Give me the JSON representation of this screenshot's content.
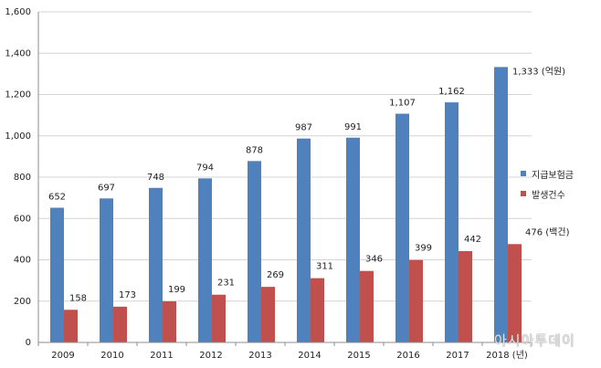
{
  "chart_data": {
    "type": "bar",
    "categories": [
      "2009",
      "2010",
      "2011",
      "2012",
      "2013",
      "2014",
      "2015",
      "2016",
      "2017",
      "2018"
    ],
    "series": [
      {
        "name": "지급보험금",
        "color": "#4f81bd",
        "values": [
          652,
          697,
          748,
          794,
          878,
          987,
          991,
          1107,
          1162,
          1333
        ]
      },
      {
        "name": "발생건수",
        "color": "#c0504d",
        "values": [
          158,
          173,
          199,
          231,
          269,
          311,
          346,
          399,
          442,
          476
        ]
      }
    ],
    "value_labels": {
      "지급보험금": [
        "652",
        "697",
        "748",
        "794",
        "878",
        "987",
        "991",
        "1,107",
        "1,162",
        "1,333"
      ],
      "발생건수": [
        "158",
        "173",
        "199",
        "231",
        "269",
        "311",
        "346",
        "399",
        "442",
        "476"
      ]
    },
    "ylim": [
      0,
      1600
    ],
    "yticks": [
      "0",
      "200",
      "400",
      "600",
      "800",
      "1,000",
      "1,200",
      "1,400",
      "1,600"
    ],
    "unit_annotations": {
      "지급보험금": "(억원)",
      "발생건수": "(백건)",
      "x": "(년)"
    },
    "legend_position": "right",
    "grid": true
  },
  "watermark": "아시아투데이"
}
